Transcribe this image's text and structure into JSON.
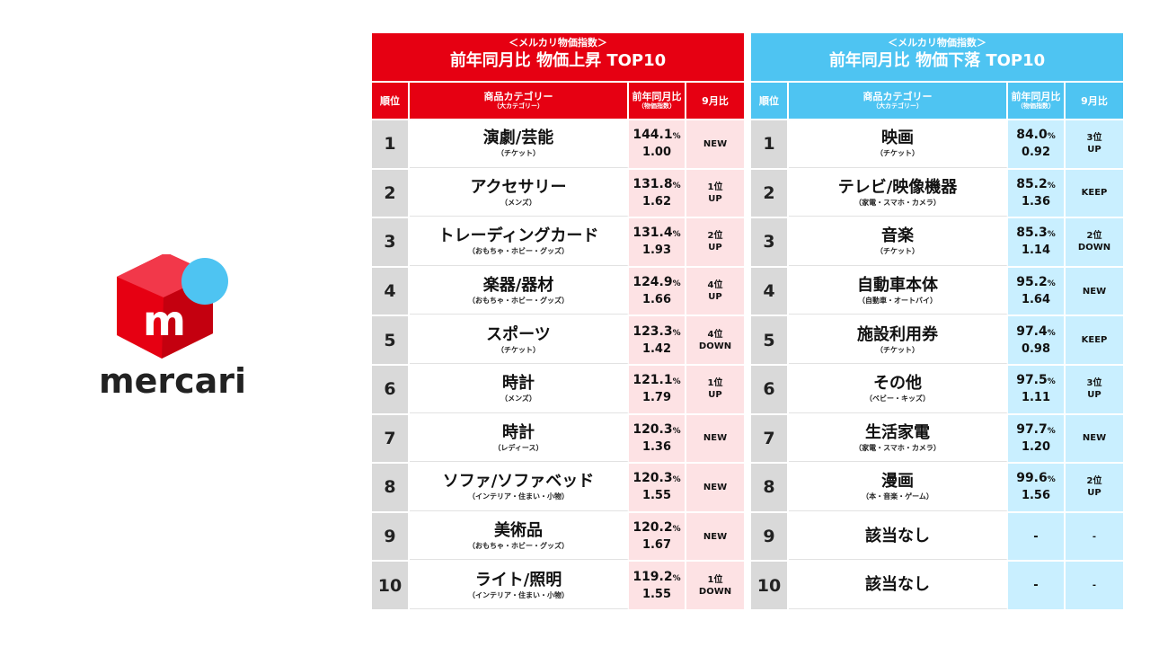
{
  "brand": {
    "wordmark": "mercari",
    "logo_letter": "m",
    "colors": {
      "red": "#e60012",
      "blue": "#4ec4f2"
    }
  },
  "headers": {
    "rank": "順位",
    "category": "商品カテゴリー",
    "category_sub": "（大カテゴリー）",
    "yoy": "前年同月比",
    "yoy_sub": "（物価指数）",
    "mom": "9月比"
  },
  "rise_table": {
    "subtitle": "＜メルカリ物価指数＞",
    "title": "前年同月比 物価上昇 TOP10",
    "rows": [
      {
        "rank": "1",
        "name": "演劇/芸能",
        "sub": "（チケット）",
        "pct": "144.1",
        "index": "1.00",
        "mom": "NEW"
      },
      {
        "rank": "2",
        "name": "アクセサリー",
        "sub": "（メンズ）",
        "pct": "131.8",
        "index": "1.62",
        "mom": "1位\nUP"
      },
      {
        "rank": "3",
        "name": "トレーディングカード",
        "sub": "（おもちゃ・ホビー・グッズ）",
        "pct": "131.4",
        "index": "1.93",
        "mom": "2位\nUP"
      },
      {
        "rank": "4",
        "name": "楽器/器材",
        "sub": "（おもちゃ・ホビー・グッズ）",
        "pct": "124.9",
        "index": "1.66",
        "mom": "4位\nUP"
      },
      {
        "rank": "5",
        "name": "スポーツ",
        "sub": "（チケット）",
        "pct": "123.3",
        "index": "1.42",
        "mom": "4位\nDOWN"
      },
      {
        "rank": "6",
        "name": "時計",
        "sub": "（メンズ）",
        "pct": "121.1",
        "index": "1.79",
        "mom": "1位\nUP"
      },
      {
        "rank": "7",
        "name": "時計",
        "sub": "（レディース）",
        "pct": "120.3",
        "index": "1.36",
        "mom": "NEW"
      },
      {
        "rank": "8",
        "name": "ソファ/ソファベッド",
        "sub": "（インテリア・住まい・小物）",
        "pct": "120.3",
        "index": "1.55",
        "mom": "NEW"
      },
      {
        "rank": "9",
        "name": "美術品",
        "sub": "（おもちゃ・ホビー・グッズ）",
        "pct": "120.2",
        "index": "1.67",
        "mom": "NEW"
      },
      {
        "rank": "10",
        "name": "ライト/照明",
        "sub": "（インテリア・住まい・小物）",
        "pct": "119.2",
        "index": "1.55",
        "mom": "1位\nDOWN"
      }
    ]
  },
  "fall_table": {
    "subtitle": "＜メルカリ物価指数＞",
    "title": "前年同月比 物価下落 TOP10",
    "rows": [
      {
        "rank": "1",
        "name": "映画",
        "sub": "（チケット）",
        "pct": "84.0",
        "index": "0.92",
        "mom": "3位\nUP"
      },
      {
        "rank": "2",
        "name": "テレビ/映像機器",
        "sub": "（家電・スマホ・カメラ）",
        "pct": "85.2",
        "index": "1.36",
        "mom": "KEEP"
      },
      {
        "rank": "3",
        "name": "音楽",
        "sub": "（チケット）",
        "pct": "85.3",
        "index": "1.14",
        "mom": "2位\nDOWN"
      },
      {
        "rank": "4",
        "name": "自動車本体",
        "sub": "（自動車・オートバイ）",
        "pct": "95.2",
        "index": "1.64",
        "mom": "NEW"
      },
      {
        "rank": "5",
        "name": "施設利用券",
        "sub": "（チケット）",
        "pct": "97.4",
        "index": "0.98",
        "mom": "KEEP"
      },
      {
        "rank": "6",
        "name": "その他",
        "sub": "（ベビー・キッズ）",
        "pct": "97.5",
        "index": "1.11",
        "mom": "3位\nUP"
      },
      {
        "rank": "7",
        "name": "生活家電",
        "sub": "（家電・スマホ・カメラ）",
        "pct": "97.7",
        "index": "1.20",
        "mom": "NEW"
      },
      {
        "rank": "8",
        "name": "漫画",
        "sub": "（本・音楽・ゲーム）",
        "pct": "99.6",
        "index": "1.56",
        "mom": "2位\nUP"
      },
      {
        "rank": "9",
        "name": "該当なし",
        "sub": "",
        "pct": "",
        "index": "",
        "mom": "-",
        "na": "-"
      },
      {
        "rank": "10",
        "name": "該当なし",
        "sub": "",
        "pct": "",
        "index": "",
        "mom": "-",
        "na": "-"
      }
    ]
  },
  "pct_unit": "%"
}
